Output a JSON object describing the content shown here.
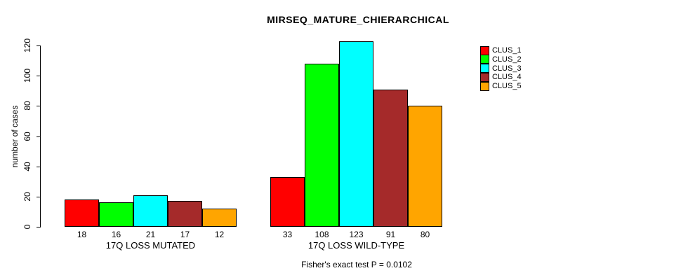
{
  "title": "MIRSEQ_MATURE_CHIERARCHICAL",
  "annotation": "Fisher's exact test P = 0.0102",
  "chart_data": {
    "type": "bar",
    "title": "MIRSEQ_MATURE_CHIERARCHICAL",
    "xlabel": "",
    "ylabel": "number of cases",
    "categories": [
      "17Q LOSS MUTATED",
      "17Q LOSS WILD-TYPE"
    ],
    "series": [
      {
        "name": "CLUS_1",
        "color": "#FF0000",
        "values": [
          18,
          33
        ]
      },
      {
        "name": "CLUS_2",
        "color": "#00FF00",
        "values": [
          16,
          108
        ]
      },
      {
        "name": "CLUS_3",
        "color": "#00FFFF",
        "values": [
          21,
          123
        ]
      },
      {
        "name": "CLUS_4",
        "color": "#A52A2A",
        "values": [
          17,
          91
        ]
      },
      {
        "name": "CLUS_5",
        "color": "#FFA500",
        "values": [
          12,
          80
        ]
      }
    ],
    "bar_value_labels": [
      [
        18,
        16,
        21,
        17,
        12
      ],
      [
        33,
        108,
        123,
        91,
        80
      ]
    ],
    "yticks": [
      0,
      20,
      40,
      60,
      80,
      100,
      120
    ],
    "ylim": [
      0,
      129
    ],
    "grid": false,
    "legend_position": "right",
    "annotation": "Fisher's exact test P = 0.0102",
    "colors": {
      "background": "#FFFFFF",
      "text": "#000000",
      "axis": "#000000",
      "bar_border": "#000000"
    }
  }
}
